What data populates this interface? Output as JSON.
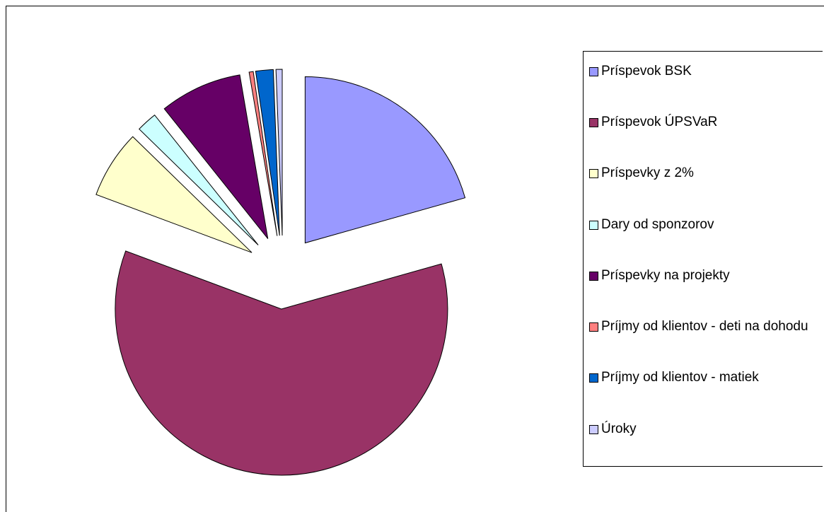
{
  "chart_data": {
    "type": "pie",
    "exploded": true,
    "legend": "right",
    "categories": [
      "Príspevok BSK",
      "Príspevok ÚPSVaR",
      "Príspevky z 2%",
      "Dary od sponzorov",
      "Príspevky na projekty",
      "Príjmy od klientov - deti na dohodu",
      "Príjmy od klientov - matiek",
      "Úroky"
    ],
    "values": [
      20.6,
      60,
      6.6,
      2,
      8,
      0.4,
      1.7,
      0.6
    ],
    "colors": [
      "#9999ff",
      "#993366",
      "#ffffcc",
      "#ccffff",
      "#660066",
      "#ff8080",
      "#0066cc",
      "#ccccff"
    ]
  }
}
